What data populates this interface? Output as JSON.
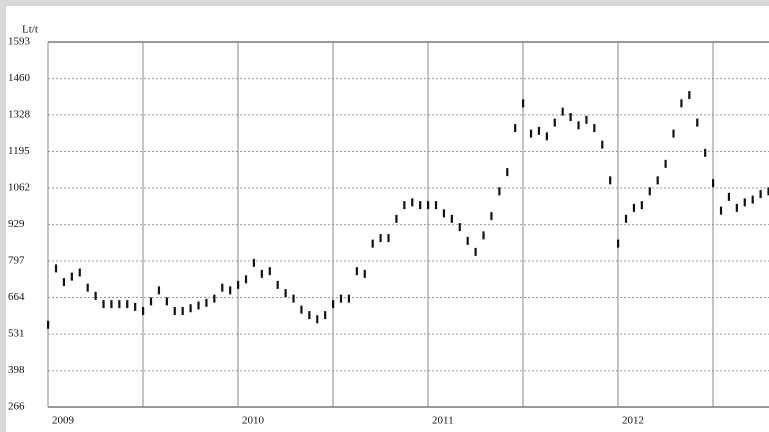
{
  "chart_data": {
    "type": "bar-ticks",
    "y_label": "Lt/t",
    "categories": [
      "2009",
      null,
      null,
      null,
      null,
      null,
      null,
      null,
      null,
      null,
      null,
      null,
      null,
      null,
      null,
      null,
      null,
      null,
      null,
      null,
      null,
      null,
      null,
      null,
      "2010",
      null,
      null,
      null,
      null,
      null,
      null,
      null,
      null,
      null,
      null,
      null,
      null,
      null,
      null,
      null,
      null,
      null,
      null,
      null,
      null,
      null,
      null,
      null,
      "2011",
      null,
      null,
      null,
      null,
      null,
      null,
      null,
      null,
      null,
      null,
      null,
      null,
      null,
      null,
      null,
      null,
      null,
      null,
      null,
      null,
      null,
      null,
      null,
      "2012",
      null,
      null,
      null,
      null,
      null,
      null,
      null,
      null,
      null,
      null,
      null,
      null,
      null,
      null,
      null,
      null,
      null,
      null,
      null
    ],
    "values": [
      565,
      770,
      720,
      740,
      755,
      700,
      670,
      640,
      640,
      640,
      640,
      630,
      615,
      650,
      690,
      650,
      615,
      615,
      625,
      635,
      645,
      660,
      700,
      690,
      710,
      730,
      790,
      750,
      760,
      710,
      680,
      660,
      620,
      600,
      585,
      600,
      640,
      660,
      660,
      760,
      750,
      860,
      880,
      880,
      950,
      1000,
      1010,
      1000,
      1000,
      1000,
      970,
      950,
      920,
      870,
      830,
      890,
      960,
      1050,
      1120,
      1280,
      1370,
      1260,
      1270,
      1250,
      1300,
      1340,
      1320,
      1290,
      1310,
      1280,
      1220,
      1090,
      860,
      950,
      990,
      1000,
      1050,
      1090,
      1150,
      1260,
      1370,
      1400,
      1300,
      1190,
      1080,
      980,
      1030,
      990,
      1010,
      1020,
      1040,
      1050
    ],
    "color": "#111111",
    "ylim": [
      266,
      1593
    ],
    "yticks": [
      266,
      398,
      531,
      664,
      797,
      929,
      1062,
      1195,
      1328,
      1460,
      1593
    ],
    "grid": true
  }
}
